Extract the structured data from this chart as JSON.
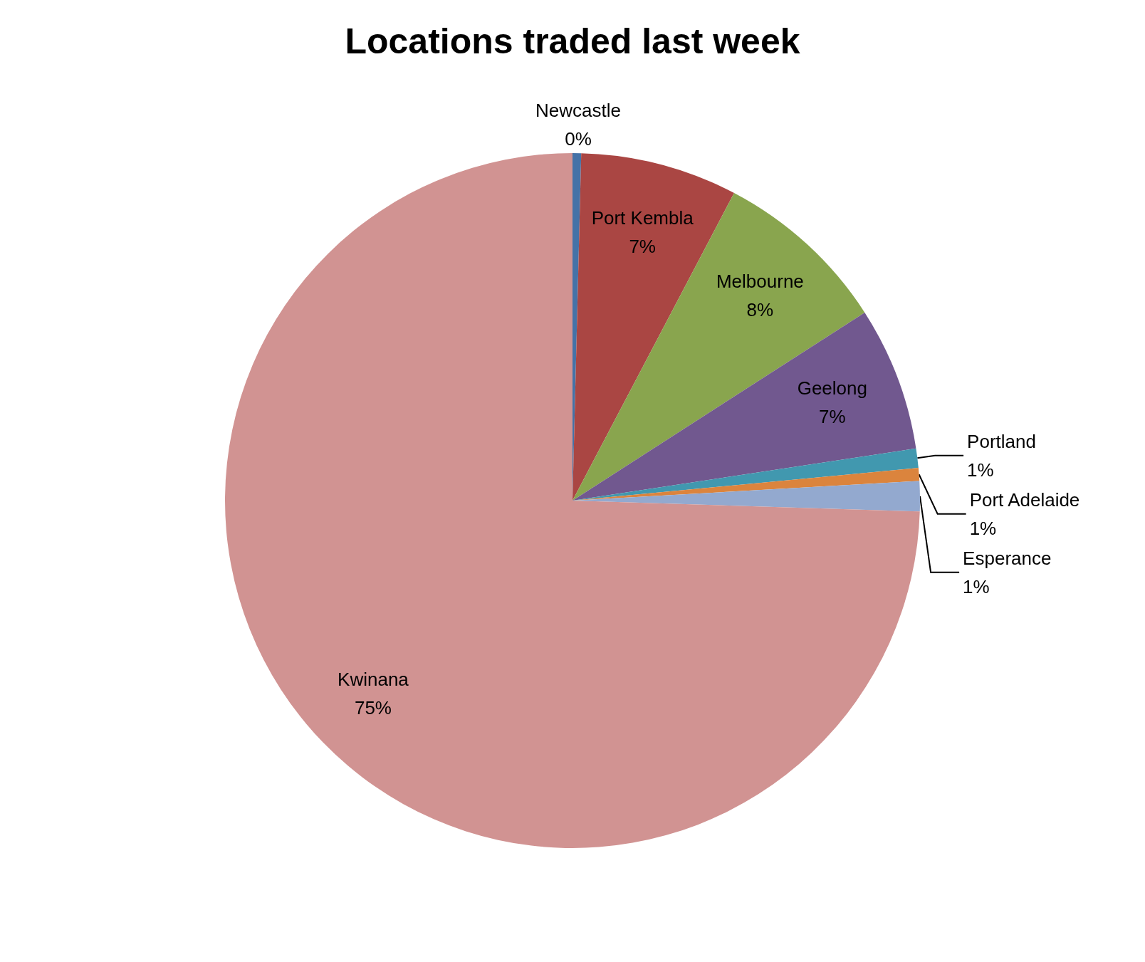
{
  "chart_data": {
    "type": "pie",
    "title": "Locations traded last week",
    "categories": [
      "Newcastle",
      "Port Kembla",
      "Melbourne",
      "Geelong",
      "Portland",
      "Port Adelaide",
      "Esperance",
      "Kwinana"
    ],
    "values": [
      0.4,
      7.3,
      8.2,
      6.7,
      0.9,
      0.6,
      1.4,
      74.5
    ],
    "value_labels": [
      "0%",
      "7%",
      "8%",
      "7%",
      "1%",
      "1%",
      "1%",
      "75%"
    ],
    "colors": [
      "#4572a7",
      "#aa4643",
      "#89a54e",
      "#71588f",
      "#4198af",
      "#db843d",
      "#93a9cf",
      "#d19392"
    ],
    "legend": false
  }
}
